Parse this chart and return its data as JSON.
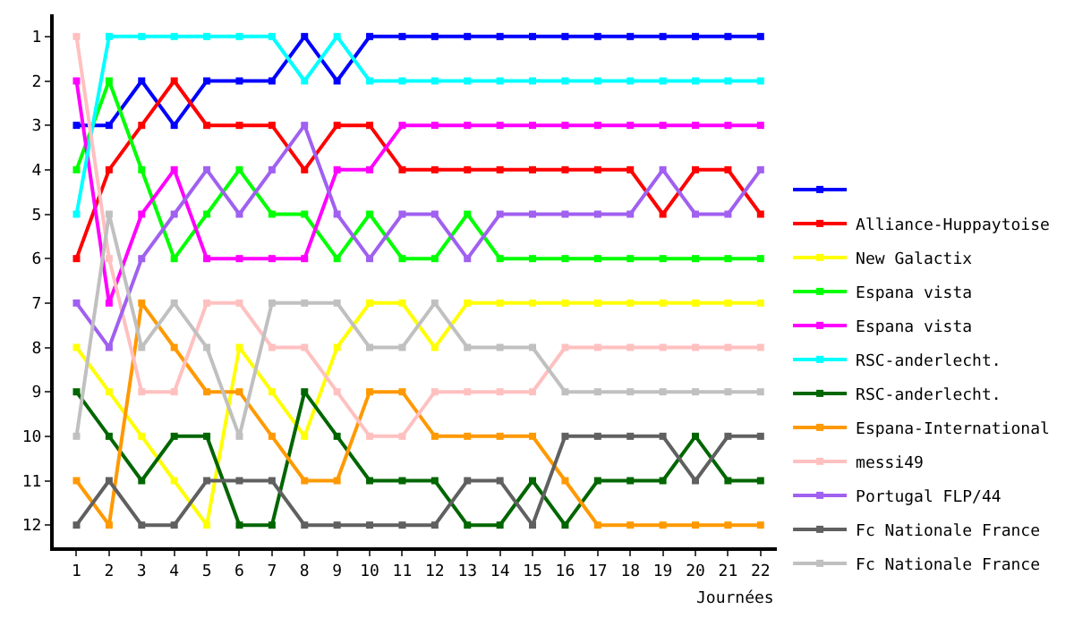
{
  "chart_data": {
    "type": "line",
    "xlabel": "Journées",
    "marker": "square",
    "line_style": "solid",
    "legend": "right",
    "x": [
      1,
      2,
      3,
      4,
      5,
      6,
      7,
      8,
      9,
      10,
      11,
      12,
      13,
      14,
      15,
      16,
      17,
      18,
      19,
      20,
      21,
      22
    ],
    "xlim": [
      0.3,
      22.5
    ],
    "xticks": [
      1,
      2,
      3,
      4,
      5,
      6,
      7,
      8,
      9,
      10,
      11,
      12,
      13,
      14,
      15,
      16,
      17,
      18,
      19,
      20,
      21,
      22
    ],
    "ylim": [
      12.5,
      0.5
    ],
    "yticks": [
      1,
      2,
      3,
      4,
      5,
      6,
      7,
      8,
      9,
      10,
      11,
      12
    ],
    "series": [
      {
        "color": "#0000ff",
        "values": [
          3,
          3,
          2,
          3,
          2,
          2,
          2,
          1,
          2,
          1,
          1,
          1,
          1,
          1,
          1,
          1,
          1,
          1,
          1,
          1,
          1,
          1
        ]
      },
      {
        "name": "Alliance-Huppaytoise",
        "color": "#ff0000",
        "values": [
          6,
          4,
          3,
          2,
          3,
          3,
          3,
          4,
          3,
          3,
          4,
          4,
          4,
          4,
          4,
          4,
          4,
          4,
          5,
          4,
          4,
          5
        ]
      },
      {
        "name": "New Galactix",
        "color": "#ffff00",
        "values": [
          8,
          9,
          10,
          11,
          12,
          8,
          9,
          10,
          8,
          7,
          7,
          8,
          7,
          7,
          7,
          7,
          7,
          7,
          7,
          7,
          7,
          7
        ]
      },
      {
        "name": "Espana vista",
        "color": "#00ff00",
        "values": [
          4,
          2,
          4,
          6,
          5,
          4,
          5,
          5,
          6,
          5,
          6,
          6,
          5,
          6,
          6,
          6,
          6,
          6,
          6,
          6,
          6,
          6
        ]
      },
      {
        "name": "Espana vista",
        "color": "#ff00ff",
        "values": [
          2,
          7,
          5,
          4,
          6,
          6,
          6,
          6,
          4,
          4,
          3,
          3,
          3,
          3,
          3,
          3,
          3,
          3,
          3,
          3,
          3,
          3
        ]
      },
      {
        "name": "RSC-anderlecht.",
        "color": "#00ffff",
        "values": [
          5,
          1,
          1,
          1,
          1,
          1,
          1,
          2,
          1,
          2,
          2,
          2,
          2,
          2,
          2,
          2,
          2,
          2,
          2,
          2,
          2,
          2
        ]
      },
      {
        "name": "RSC-anderlecht.",
        "color": "#006600",
        "values": [
          9,
          10,
          11,
          10,
          10,
          12,
          12,
          9,
          10,
          11,
          11,
          11,
          12,
          12,
          11,
          12,
          11,
          11,
          11,
          10,
          11,
          11
        ]
      },
      {
        "name": "Espana-International",
        "color": "#ff9900",
        "values": [
          11,
          12,
          7,
          8,
          9,
          9,
          10,
          11,
          11,
          9,
          9,
          10,
          10,
          10,
          10,
          11,
          12,
          12,
          12,
          12,
          12,
          12
        ]
      },
      {
        "name": "messi49",
        "color": "#ffc0c0",
        "values": [
          1,
          6,
          9,
          9,
          7,
          7,
          8,
          8,
          9,
          10,
          10,
          9,
          9,
          9,
          9,
          8,
          8,
          8,
          8,
          8,
          8,
          8
        ]
      },
      {
        "name": "Portugal FLP/44",
        "color": "#a060f0",
        "values": [
          7,
          8,
          6,
          5,
          4,
          5,
          4,
          3,
          5,
          6,
          5,
          5,
          6,
          5,
          5,
          5,
          5,
          5,
          4,
          5,
          5,
          4
        ]
      },
      {
        "name": "Fc Nationale France",
        "color": "#606060",
        "values": [
          12,
          11,
          12,
          12,
          11,
          11,
          11,
          12,
          12,
          12,
          12,
          12,
          11,
          11,
          12,
          10,
          10,
          10,
          10,
          11,
          10,
          10
        ]
      },
      {
        "name": "Fc Nationale France",
        "color": "#c0c0c0",
        "values": [
          10,
          5,
          8,
          7,
          8,
          10,
          7,
          7,
          7,
          8,
          8,
          7,
          8,
          8,
          8,
          9,
          9,
          9,
          9,
          9,
          9,
          9
        ]
      }
    ]
  }
}
